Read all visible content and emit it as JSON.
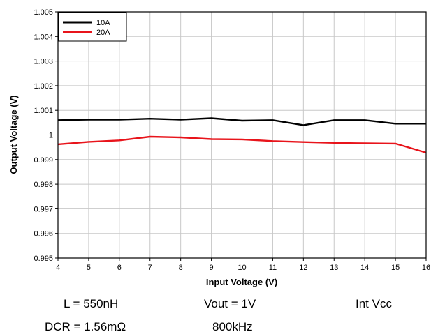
{
  "chart_data": {
    "type": "line",
    "xlabel": "Input Voltage (V)",
    "ylabel": "Output Voltage (V)",
    "xlim": [
      4,
      16
    ],
    "ylim": [
      0.995,
      1.005
    ],
    "x_ticks": [
      4,
      5,
      6,
      7,
      8,
      9,
      10,
      11,
      12,
      13,
      14,
      15,
      16
    ],
    "y_ticks": [
      0.995,
      0.996,
      0.997,
      0.998,
      0.999,
      1,
      1.001,
      1.002,
      1.003,
      1.004,
      1.005
    ],
    "y_tick_labels": [
      "0.995",
      "0.996",
      "0.997",
      "0.998",
      "0.999",
      "1",
      "1.001",
      "1.002",
      "1.003",
      "1.004",
      "1.005"
    ],
    "grid": true,
    "legend_position": "top-left",
    "x": [
      4,
      5,
      6,
      7,
      8,
      9,
      10,
      11,
      12,
      13,
      14,
      15,
      16
    ],
    "series": [
      {
        "name": "10A",
        "color": "#000000",
        "values": [
          1.0006,
          1.00062,
          1.00062,
          1.00066,
          1.00062,
          1.00068,
          1.00058,
          1.0006,
          1.0004,
          1.0006,
          1.0006,
          1.00046,
          1.00046
        ]
      },
      {
        "name": "20A",
        "color": "#e8141b",
        "values": [
          0.99962,
          0.99972,
          0.99978,
          0.99993,
          0.9999,
          0.99983,
          0.99982,
          0.99975,
          0.99971,
          0.99968,
          0.99966,
          0.99965,
          0.99928
        ]
      }
    ]
  },
  "conditions": {
    "inductance": "L = 550nH",
    "vout": "Vout = 1V",
    "vcc": "Int Vcc",
    "dcr": "DCR = 1.56mΩ",
    "frequency": "800kHz"
  }
}
